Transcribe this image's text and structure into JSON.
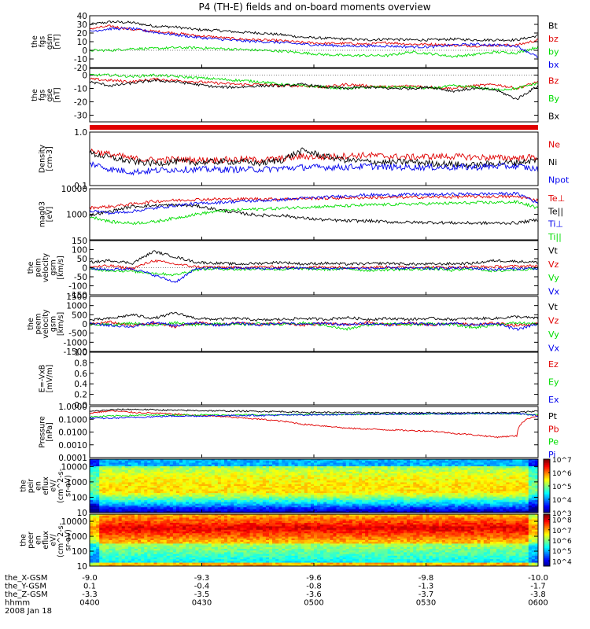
{
  "title": "P4 (TH-E) fields and on-board moments overview",
  "colors": {
    "black": "#000000",
    "red": "#e00000",
    "green": "#00dd00",
    "blue": "#0000ee"
  },
  "panels": [
    {
      "id": "fgs-gsm",
      "ylabel": [
        "the",
        "fgs",
        "gsm",
        "[nT]"
      ],
      "yticks": [
        "40",
        "30",
        "20",
        "10",
        "0",
        "-10",
        "-20"
      ],
      "ylim": [
        -20,
        40
      ],
      "series": [
        {
          "name": "Bt",
          "color": "black",
          "values": [
            30,
            33,
            32,
            28,
            27,
            24,
            23,
            21,
            20,
            18,
            15,
            14,
            13,
            12,
            13,
            12,
            12,
            13,
            12,
            12,
            12,
            17
          ]
        },
        {
          "name": "bz",
          "color": "red",
          "values": [
            25,
            28,
            24,
            22,
            20,
            17,
            15,
            13,
            12,
            11,
            9,
            8,
            8,
            7,
            9,
            7,
            7,
            6,
            5,
            6,
            6,
            12
          ]
        },
        {
          "name": "by",
          "color": "green",
          "values": [
            0,
            0,
            2,
            2,
            3,
            3,
            2,
            1,
            0,
            -1,
            -3,
            -5,
            -6,
            -6,
            -6,
            -2,
            -4,
            -7,
            -5,
            -2,
            -3,
            4
          ]
        },
        {
          "name": "bx",
          "color": "blue",
          "values": [
            22,
            25,
            25,
            21,
            18,
            15,
            13,
            11,
            10,
            9,
            7,
            6,
            5,
            5,
            5,
            4,
            4,
            6,
            7,
            6,
            5,
            -8
          ]
        }
      ]
    },
    {
      "id": "fgs-gse",
      "ylabel": [
        "the",
        "fgs",
        "gse",
        "[nT]"
      ],
      "yticks": [
        "0",
        "-10",
        "-20",
        "-30"
      ],
      "ylim": [
        -35,
        5
      ],
      "series": [
        {
          "name": "Bz",
          "color": "red",
          "values": [
            -3,
            -4,
            -5,
            -3,
            -4,
            -5,
            -6,
            -7,
            -7,
            -8,
            -8,
            -9,
            -7,
            -8,
            -9,
            -8,
            -9,
            -10,
            -8,
            -7,
            -10,
            -5
          ]
        },
        {
          "name": "By",
          "color": "green",
          "values": [
            0,
            0,
            -1,
            0,
            -1,
            -2,
            -3,
            -4,
            -5,
            -7,
            -8,
            -9,
            -10,
            -9,
            -9,
            -9,
            -10,
            -8,
            -9,
            -11,
            -10,
            -6
          ]
        },
        {
          "name": "Bx",
          "color": "black",
          "values": [
            -5,
            -8,
            -6,
            -4,
            -5,
            -7,
            -9,
            -9,
            -8,
            -8,
            -7,
            -9,
            -10,
            -9,
            -10,
            -10,
            -9,
            -12,
            -10,
            -11,
            -18,
            -8
          ]
        }
      ]
    },
    {
      "id": "density",
      "ylabel": [
        "Density",
        "[cm-3]"
      ],
      "yticks": [
        "1.0",
        "0.1"
      ],
      "ylim": [
        0.1,
        1.0
      ],
      "log": true,
      "series": [
        {
          "name": "Ne",
          "color": "red",
          "values": [
            0.45,
            0.38,
            0.32,
            0.3,
            0.31,
            0.3,
            0.3,
            0.31,
            0.3,
            0.32,
            0.35,
            0.34,
            0.36,
            0.37,
            0.35,
            0.34,
            0.35,
            0.35,
            0.34,
            0.33,
            0.33,
            0.34
          ]
        },
        {
          "name": "Ni",
          "color": "black",
          "values": [
            0.4,
            0.33,
            0.28,
            0.26,
            0.28,
            0.27,
            0.28,
            0.28,
            0.26,
            0.3,
            0.45,
            0.35,
            0.3,
            0.28,
            0.27,
            0.28,
            0.26,
            0.25,
            0.24,
            0.26,
            0.27,
            0.3
          ]
        },
        {
          "name": "Npot",
          "color": "blue",
          "values": [
            0.26,
            0.2,
            0.18,
            0.19,
            0.2,
            0.2,
            0.2,
            0.2,
            0.2,
            0.21,
            0.22,
            0.22,
            0.22,
            0.23,
            0.22,
            0.22,
            0.22,
            0.22,
            0.22,
            0.23,
            0.23,
            0.2
          ]
        }
      ]
    },
    {
      "id": "temperature",
      "ylabel": [
        "mag03",
        "[eV]"
      ],
      "yticks": [
        "10000",
        "1000"
      ],
      "ylim": [
        100,
        10000
      ],
      "log": true,
      "series": [
        {
          "name": "Te⊥",
          "color": "red",
          "values": [
            1800,
            2000,
            2500,
            3200,
            3500,
            3800,
            3900,
            3900,
            4000,
            3900,
            4200,
            4200,
            4400,
            4500,
            4600,
            4600,
            4700,
            4800,
            4900,
            4900,
            4900,
            3500
          ]
        },
        {
          "name": "Te||",
          "color": "black",
          "values": [
            900,
            1300,
            2000,
            2200,
            2300,
            2100,
            1500,
            1100,
            900,
            900,
            700,
            600,
            550,
            550,
            500,
            480,
            480,
            460,
            450,
            450,
            460,
            600
          ]
        },
        {
          "name": "Ti⊥",
          "color": "blue",
          "values": [
            1400,
            1100,
            1300,
            1700,
            2200,
            2600,
            2900,
            3200,
            3400,
            3700,
            4200,
            4600,
            5200,
            5700,
            5600,
            5900,
            5800,
            6100,
            6200,
            6300,
            6400,
            2500
          ]
        },
        {
          "name": "Ti||",
          "color": "green",
          "values": [
            800,
            500,
            450,
            500,
            700,
            1000,
            1300,
            1500,
            1600,
            1700,
            1900,
            2000,
            2100,
            2300,
            2400,
            2500,
            2600,
            2700,
            2800,
            2900,
            3000,
            1700
          ]
        }
      ]
    },
    {
      "id": "peim-velocity",
      "ylabel": [
        "the",
        "peim",
        "velocity",
        "gsm",
        "[km/s]"
      ],
      "yticks": [
        "150",
        "100",
        "50",
        "0",
        "-50",
        "-100",
        "-150"
      ],
      "ylim": [
        -150,
        150
      ],
      "series": [
        {
          "name": "Vt",
          "color": "black",
          "values": [
            30,
            40,
            25,
            90,
            60,
            30,
            25,
            20,
            25,
            30,
            20,
            25,
            20,
            22,
            25,
            20,
            20,
            22,
            25,
            40,
            35,
            30
          ]
        },
        {
          "name": "Vz",
          "color": "red",
          "values": [
            5,
            10,
            -5,
            40,
            20,
            5,
            3,
            0,
            5,
            3,
            0,
            5,
            2,
            3,
            4,
            2,
            3,
            2,
            5,
            5,
            8,
            10
          ]
        },
        {
          "name": "Vy",
          "color": "green",
          "values": [
            -10,
            -15,
            -20,
            -30,
            -40,
            -10,
            -5,
            -10,
            -5,
            -10,
            -5,
            -10,
            -5,
            -15,
            -10,
            -10,
            -5,
            -15,
            -5,
            -20,
            -10,
            -5
          ]
        },
        {
          "name": "Vx",
          "color": "blue",
          "values": [
            -5,
            -10,
            -5,
            -40,
            -80,
            -5,
            -3,
            -2,
            -5,
            -3,
            -2,
            -5,
            -3,
            -5,
            -3,
            -3,
            -5,
            -2,
            -3,
            -10,
            -5,
            -3
          ]
        }
      ]
    },
    {
      "id": "peem-velocity",
      "ylabel": [
        "the",
        "peem",
        "velocity",
        "gsm",
        "[km/s]"
      ],
      "yticks": [
        "1500",
        "1000",
        "500",
        "0",
        "-500",
        "-1000",
        "-1500"
      ],
      "ylim": [
        -1500,
        1500
      ],
      "series": [
        {
          "name": "Vt",
          "color": "black",
          "values": [
            200,
            300,
            500,
            300,
            600,
            300,
            250,
            300,
            200,
            250,
            300,
            250,
            350,
            250,
            300,
            250,
            300,
            250,
            300,
            300,
            400,
            300
          ]
        },
        {
          "name": "Vz",
          "color": "red",
          "values": [
            0,
            100,
            -100,
            50,
            -150,
            80,
            -50,
            60,
            -40,
            50,
            -60,
            40,
            -50,
            60,
            -40,
            50,
            -50,
            40,
            -60,
            50,
            -80,
            0
          ]
        },
        {
          "name": "Vy",
          "color": "green",
          "values": [
            0,
            -50,
            50,
            -100,
            80,
            -60,
            40,
            -50,
            30,
            -40,
            50,
            -60,
            -300,
            -50,
            40,
            -60,
            30,
            -40,
            -200,
            -50,
            60,
            0
          ]
        },
        {
          "name": "Vx",
          "color": "blue",
          "values": [
            0,
            -80,
            -150,
            80,
            -100,
            50,
            -60,
            40,
            -50,
            60,
            -40,
            50,
            -60,
            40,
            -50,
            60,
            -40,
            50,
            -60,
            40,
            -300,
            0
          ]
        }
      ]
    },
    {
      "id": "efield",
      "ylabel": [
        "E=-VxB",
        "[mV/m]"
      ],
      "yticks": [
        "1.0",
        "0.8",
        "0.6",
        "0.4",
        "0.2",
        "0.0"
      ],
      "ylim": [
        0,
        1
      ],
      "series": [
        {
          "name": "Ez",
          "color": "red",
          "values": []
        },
        {
          "name": "Ey",
          "color": "green",
          "values": []
        },
        {
          "name": "Ex",
          "color": "blue",
          "values": []
        }
      ]
    },
    {
      "id": "pressure",
      "ylabel": [
        "Pressure",
        "[nPa]"
      ],
      "yticks": [
        "1.0000",
        "0.1000",
        "0.0100",
        "0.0010",
        "0.0001"
      ],
      "ylim": [
        0.0001,
        1
      ],
      "log": true,
      "series": [
        {
          "name": "Pt",
          "color": "black",
          "values": [
            0.4,
            0.55,
            0.6,
            0.55,
            0.5,
            0.48,
            0.45,
            0.43,
            0.42,
            0.4,
            0.35,
            0.35,
            0.33,
            0.33,
            0.32,
            0.32,
            0.32,
            0.32,
            0.32,
            0.33,
            0.33,
            0.45
          ]
        },
        {
          "name": "Pb",
          "color": "red",
          "values": [
            0.3,
            0.45,
            0.35,
            0.3,
            0.25,
            0.2,
            0.17,
            0.13,
            0.1,
            0.07,
            0.04,
            0.03,
            0.02,
            0.017,
            0.015,
            0.013,
            0.012,
            0.008,
            0.006,
            0.004,
            0.005,
            0.2
          ]
        },
        {
          "name": "Pe",
          "color": "green",
          "values": [
            0.15,
            0.18,
            0.2,
            0.21,
            0.22,
            0.22,
            0.22,
            0.22,
            0.22,
            0.22,
            0.24,
            0.24,
            0.24,
            0.25,
            0.25,
            0.26,
            0.26,
            0.26,
            0.27,
            0.27,
            0.27,
            0.22
          ]
        },
        {
          "name": "Pi",
          "color": "blue",
          "values": [
            0.12,
            0.12,
            0.14,
            0.16,
            0.18,
            0.18,
            0.19,
            0.2,
            0.2,
            0.21,
            0.22,
            0.23,
            0.24,
            0.25,
            0.25,
            0.26,
            0.27,
            0.27,
            0.28,
            0.28,
            0.29,
            0.18
          ]
        }
      ]
    },
    {
      "id": "peir-spectrogram",
      "type": "heatmap",
      "ylabel": [
        "the",
        "peir",
        "en",
        "eflux",
        "eV/",
        "(cm^2-s-",
        "sr-eV)"
      ],
      "yticks": [
        "10000",
        "1000",
        "100",
        "10"
      ],
      "ylim": [
        10,
        30000
      ],
      "log": true,
      "colorbar": {
        "ticks": [
          "10^7",
          "10^6",
          "10^5",
          "10^4",
          "10^3"
        ],
        "range": [
          3,
          7
        ]
      }
    },
    {
      "id": "peer-spectrogram",
      "type": "heatmap",
      "ylabel": [
        "the",
        "peer",
        "en",
        "eflux",
        "eV/",
        "(cm^2-s-",
        "sr-eV)"
      ],
      "yticks": [
        "10000",
        "1000",
        "100",
        "10"
      ],
      "ylim": [
        10,
        30000
      ],
      "log": true,
      "colorbar": {
        "ticks": [
          "10^8",
          "10^7",
          "10^6",
          "10^5",
          "10^4"
        ],
        "range": [
          3.5,
          8.5
        ]
      }
    }
  ],
  "chart_data": {
    "type": "line",
    "title": "P4 (TH-E) fields and on-board moments overview",
    "x_axis": {
      "rows": [
        {
          "label": "the_X-GSM",
          "values": [
            "-9.0",
            "-9.3",
            "-9.6",
            "-9.8",
            "-10.0"
          ]
        },
        {
          "label": "the_Y-GSM",
          "values": [
            "0.1",
            "-0.4",
            "-0.8",
            "-1.3",
            "-1.7"
          ]
        },
        {
          "label": "the_Z-GSM",
          "values": [
            "-3.3",
            "-3.5",
            "-3.6",
            "-3.7",
            "-3.8"
          ]
        },
        {
          "label": "hhmm",
          "values": [
            "0400",
            "0430",
            "0500",
            "0530",
            "0600"
          ]
        }
      ],
      "date": "2008 Jan 18",
      "xlim": [
        "04:00",
        "06:00"
      ]
    }
  }
}
